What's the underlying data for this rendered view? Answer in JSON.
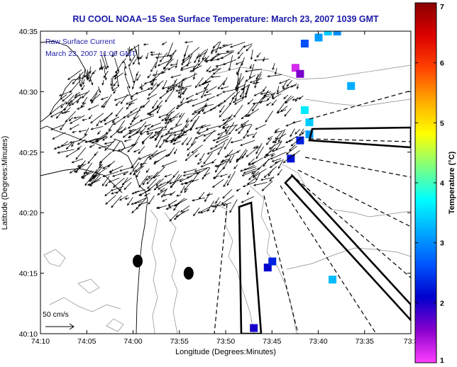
{
  "chart_data": {
    "type": "vector-field-map",
    "title": "RU COOL  NOAA−15  Sea Surface Temperature:  March 23, 2007 1039 GMT",
    "xlabel": "Longitude (Degrees:Minutes)",
    "ylabel": "Latitude (Degrees:Minutes)",
    "xlim": [
      -74.1667,
      -73.5
    ],
    "ylim": [
      40.1667,
      40.5833
    ],
    "x_ticks": [
      {
        "value": -74.1667,
        "label": "74:10"
      },
      {
        "value": -74.0833,
        "label": "74:05"
      },
      {
        "value": -74.0,
        "label": "74:00"
      },
      {
        "value": -73.9167,
        "label": "73:55"
      },
      {
        "value": -73.8333,
        "label": "73:50"
      },
      {
        "value": -73.75,
        "label": "73:45"
      },
      {
        "value": -73.6667,
        "label": "73:40"
      },
      {
        "value": -73.5833,
        "label": "73:35"
      },
      {
        "value": -73.5,
        "label": "73:3"
      }
    ],
    "y_ticks": [
      {
        "value": 40.1667,
        "label": "40:10"
      },
      {
        "value": 40.25,
        "label": "40:15"
      },
      {
        "value": 40.3333,
        "label": "40:20"
      },
      {
        "value": 40.4167,
        "label": "40:25"
      },
      {
        "value": 40.5,
        "label": "40:30"
      },
      {
        "value": 40.5833,
        "label": "40:35"
      }
    ],
    "annotations": [
      "Raw Surface Current",
      "March 23, 2007 11:00 GMT"
    ],
    "scale_label": "50 cm/s",
    "colorbar": {
      "label": "Temperature (°C)",
      "range": [
        1,
        7
      ],
      "ticks": [
        "1",
        "2",
        "3",
        "4",
        "5",
        "6",
        "7"
      ],
      "colormap": "jet-magenta",
      "colors": [
        "#ff3fff",
        "#8800cc",
        "#0000cc",
        "#0055ff",
        "#00aaff",
        "#00ffff",
        "#7fff7f",
        "#ffff00",
        "#ffaa00",
        "#ff4400",
        "#dd0000",
        "#880000"
      ]
    },
    "sst_patches": [
      {
        "lon": -73.6917,
        "lat": 40.5667,
        "temp": 2.6
      },
      {
        "lon": -73.6667,
        "lat": 40.575,
        "temp": 3.1
      },
      {
        "lon": -73.65,
        "lat": 40.5833,
        "temp": 3.4
      },
      {
        "lon": -73.6333,
        "lat": 40.5833,
        "temp": 3.0
      },
      {
        "lon": -73.7083,
        "lat": 40.5333,
        "temp": 1.2
      },
      {
        "lon": -73.7,
        "lat": 40.525,
        "temp": 1.6
      },
      {
        "lon": -73.6083,
        "lat": 40.5083,
        "temp": 3.2
      },
      {
        "lon": -73.6917,
        "lat": 40.475,
        "temp": 3.6
      },
      {
        "lon": -73.6833,
        "lat": 40.4583,
        "temp": 3.4
      },
      {
        "lon": -73.6833,
        "lat": 40.4417,
        "temp": 3.1
      },
      {
        "lon": -73.7,
        "lat": 40.4333,
        "temp": 2.3
      },
      {
        "lon": -73.7167,
        "lat": 40.4083,
        "temp": 2.2
      },
      {
        "lon": -73.7583,
        "lat": 40.2583,
        "temp": 2.1
      },
      {
        "lon": -73.75,
        "lat": 40.2667,
        "temp": 2.3
      },
      {
        "lon": -73.6417,
        "lat": 40.2417,
        "temp": 3.3
      },
      {
        "lon": -73.7833,
        "lat": 40.175,
        "temp": 2.0
      }
    ],
    "hf_radar_stations": [
      {
        "lon": -73.9917,
        "lat": 40.2667
      },
      {
        "lon": -73.9,
        "lat": 40.25
      }
    ]
  }
}
